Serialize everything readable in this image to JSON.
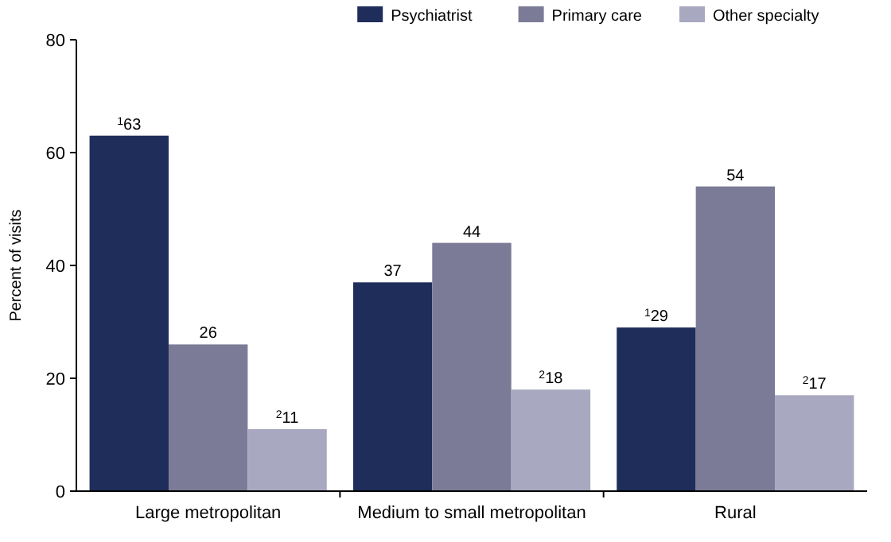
{
  "chart_data": {
    "type": "bar",
    "ylabel": "Percent of visits",
    "categories": [
      "Large metropolitan",
      "Medium to small metropolitan",
      "Rural"
    ],
    "series": [
      {
        "name": "Psychiatrist",
        "color": "#1f2d5a",
        "values": [
          63,
          37,
          29
        ],
        "value_labels": [
          "$^{1}$63",
          "37",
          "$^{1}$29"
        ]
      },
      {
        "name": "Primary care",
        "color": "#7b7b97",
        "values": [
          26,
          44,
          54
        ],
        "value_labels": [
          "26",
          "44",
          "54"
        ]
      },
      {
        "name": "Other specialty",
        "color": "#a9a8c1",
        "values": [
          11,
          18,
          17
        ],
        "value_labels": [
          "$^{2}$11",
          "$^{2}$18",
          "$^{2}$17"
        ]
      }
    ],
    "ylim": [
      0,
      80
    ],
    "yticks": [
      0,
      20,
      40,
      60,
      80
    ],
    "grid": false,
    "legend": "top right"
  }
}
